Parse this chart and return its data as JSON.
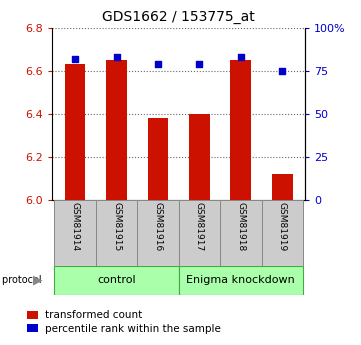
{
  "title": "GDS1662 / 153775_at",
  "samples": [
    "GSM81914",
    "GSM81915",
    "GSM81916",
    "GSM81917",
    "GSM81918",
    "GSM81919"
  ],
  "bar_values": [
    6.63,
    6.65,
    6.38,
    6.4,
    6.65,
    6.12
  ],
  "percentile_values": [
    82,
    83,
    79,
    79,
    83,
    75
  ],
  "ylim_left": [
    6.0,
    6.8
  ],
  "ylim_right": [
    0,
    100
  ],
  "yticks_left": [
    6.0,
    6.2,
    6.4,
    6.6,
    6.8
  ],
  "yticks_right": [
    0,
    25,
    50,
    75,
    100
  ],
  "ytick_labels_right": [
    "0",
    "25",
    "50",
    "75",
    "100%"
  ],
  "bar_color": "#cc1100",
  "dot_color": "#0000cc",
  "grid_color": "#666666",
  "control_group": [
    0,
    1,
    2
  ],
  "knockdown_group": [
    3,
    4,
    5
  ],
  "control_label": "control",
  "knockdown_label": "Enigma knockdown",
  "protocol_label": "protocol",
  "legend_bar_label": "transformed count",
  "legend_dot_label": "percentile rank within the sample",
  "bg_color": "#ffffff",
  "tick_box_color": "#cccccc",
  "tick_box_border": "#888888",
  "group_box_color": "#aaffaa",
  "group_box_border": "#44aa44"
}
